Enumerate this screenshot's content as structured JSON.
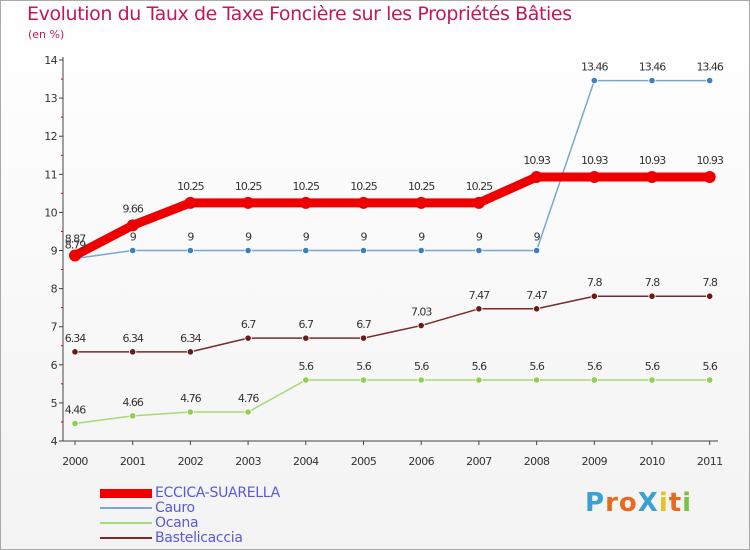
{
  "chart_data": {
    "type": "line",
    "title": "Evolution du Taux de Taxe Foncière sur les Propriétés Bâties",
    "ylabel": "(en %)",
    "xlabel": "",
    "ylim": [
      4,
      14
    ],
    "yticks": [
      "4",
      "5",
      "6",
      "7",
      "8",
      "9",
      "10",
      "11",
      "12",
      "13",
      "14"
    ],
    "categories": [
      "2000",
      "2001",
      "2002",
      "2003",
      "2004",
      "2005",
      "2006",
      "2007",
      "2008",
      "2009",
      "2010",
      "2011"
    ],
    "series": [
      {
        "name": "ECCICA-SUARELLA",
        "color": "#ee0000",
        "values": [
          8.87,
          9.66,
          10.25,
          10.25,
          10.25,
          10.25,
          10.25,
          10.25,
          10.93,
          10.93,
          10.93,
          10.93
        ],
        "labels": [
          "8.87",
          "9.66",
          "10.25",
          "10.25",
          "10.25",
          "10.25",
          "10.25",
          "10.25",
          "10.93",
          "10.93",
          "10.93",
          "10.93"
        ]
      },
      {
        "name": "Cauro",
        "color": "#7aa6d6",
        "values": [
          8.79,
          9,
          9,
          9,
          9,
          9,
          9,
          9,
          9,
          13.46,
          13.46,
          13.46
        ],
        "labels": [
          "8.79",
          "9",
          "9",
          "9",
          "9",
          "9",
          "9",
          "9",
          "9",
          "13.46",
          "13.46",
          "13.46"
        ]
      },
      {
        "name": "Ocana",
        "color": "#a8d878",
        "values": [
          4.46,
          4.66,
          4.76,
          4.76,
          5.6,
          5.6,
          5.6,
          5.6,
          5.6,
          5.6,
          5.6,
          5.6
        ],
        "labels": [
          "4.46",
          "4.66",
          "4.76",
          "4.76",
          "5.6",
          "5.6",
          "5.6",
          "5.6",
          "5.6",
          "5.6",
          "5.6",
          "5.6"
        ]
      },
      {
        "name": "Bastelicaccia",
        "color": "#7a2a2a",
        "values": [
          6.34,
          6.34,
          6.34,
          6.7,
          6.7,
          6.7,
          7.03,
          7.47,
          7.47,
          7.8,
          7.8,
          7.8
        ],
        "labels": [
          "6.34",
          "6.34",
          "6.34",
          "6.7",
          "6.7",
          "6.7",
          "7.03",
          "7.47",
          "7.47",
          "7.8",
          "7.8",
          "7.8"
        ]
      }
    ],
    "legend": "bottom-left",
    "grid": false
  },
  "logo": {
    "text": "ProXiti",
    "letters": [
      "P",
      "r",
      "o",
      "X",
      "i",
      "t",
      "i"
    ],
    "colors": [
      "#3aa0d8",
      "#e86a1e",
      "#e86a1e",
      "#3aa0d8",
      "#e8c21e",
      "#e86a1e",
      "#7ac142"
    ]
  }
}
